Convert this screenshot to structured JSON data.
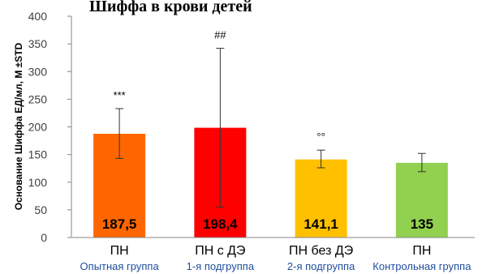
{
  "chart_data": {
    "type": "bar",
    "title": "Шиффа в крови детей",
    "ylabel": "Основание Шиффа ЕД/мл, M ±STD",
    "ylim": [
      0,
      400
    ],
    "yticks": [
      "0",
      "50",
      "100",
      "150",
      "200",
      "250",
      "300",
      "350",
      "400"
    ],
    "grid": false,
    "categories": [
      "ПН",
      "ПН с ДЭ",
      "ПН без ДЭ",
      "ПН"
    ],
    "subcategories": [
      "Опытная группа",
      "1-я подгруппа",
      "2-я подгруппа",
      "Контрольная группа"
    ],
    "values": [
      187.5,
      198.4,
      141.1,
      135
    ],
    "value_labels": [
      "187,5",
      "198,4",
      "141,1",
      "135"
    ],
    "error_low": [
      143,
      55,
      126,
      119
    ],
    "error_high": [
      233,
      342,
      158,
      152
    ],
    "annotations": [
      "***",
      "##",
      "°°",
      ""
    ],
    "colors": [
      "#FF6600",
      "#FF0000",
      "#FFC000",
      "#92D050"
    ]
  }
}
